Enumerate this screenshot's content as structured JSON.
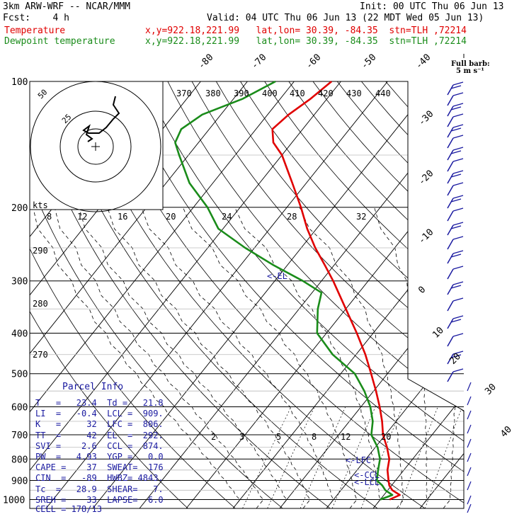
{
  "header": {
    "model": "3km ARW-WRF -- NCAR/MMM",
    "init": "Init: 00 UTC Thu 06 Jun 13",
    "fcst": "Fcst:    4 h",
    "valid": "Valid: 04 UTC Thu 06 Jun 13 (22 MDT Wed 05 Jun 13)",
    "temp_label": "Temperature",
    "temp_info": "x,y=922.18,221.99   lat,lon= 30.39, -84.35  stn=TLH ,72214",
    "dew_label": "Dewpoint temperature",
    "dew_info": "x,y=922.18,221.99   lat,lon= 30.39, -84.35  stn=TLH ,72214"
  },
  "colors": {
    "temperature": "#e00000",
    "dewpoint": "#1a8c1a",
    "parcel_text": "#1a1aa0",
    "grid": "#000000"
  },
  "barb_legend": {
    "line1": "Full barb:",
    "line2": "5 m s⁻¹"
  },
  "parcel_info": {
    "title": "Parcel Info",
    "rows": [
      [
        "T   =",
        "23.4",
        "Td =",
        "21.8"
      ],
      [
        "LI  =",
        "-0.4",
        "LCL =",
        "909."
      ],
      [
        "K   =",
        "32",
        "LFC =",
        "806."
      ],
      [
        "TT  =",
        "42",
        "EL  =",
        "292."
      ],
      [
        "SVI =",
        "2.6",
        "CCL =",
        "874."
      ],
      [
        "PW  =",
        "4.93",
        "YGP =",
        "0.0"
      ],
      [
        "CAPE =",
        "37",
        "SWEAT=",
        "176"
      ],
      [
        "CIN  =",
        "-89",
        "HWBZ=",
        "4843."
      ],
      [
        "Tc  =",
        "28.9",
        "SHEAR=",
        "7."
      ],
      [
        "SREH =",
        "33",
        "LAPSE=",
        "6.0"
      ]
    ],
    "cell": "CELL = 178/13"
  },
  "chart_data": {
    "type": "line",
    "title": "",
    "xlabel": "",
    "ylabel": "",
    "pressure_levels": [
      100,
      200,
      300,
      400,
      500,
      600,
      700,
      800,
      900,
      1000
    ],
    "ylim": [
      1050,
      100
    ],
    "isotherm_labels": [
      "-80",
      "-70",
      "-60",
      "-50",
      "-40",
      "-30",
      "-20",
      "-10",
      "0",
      "10",
      "20",
      "30",
      "40"
    ],
    "theta_labels": [
      "370",
      "380",
      "390",
      "400",
      "410",
      "420",
      "430",
      "440"
    ],
    "hodograph_speed_labels": [
      "8",
      "12",
      "16",
      "20",
      "24",
      "28",
      "32"
    ],
    "hodograph_ring_labels": [
      "50",
      "25"
    ],
    "hodograph_units": "kts",
    "dry_adiabat_labels": [
      "290",
      "280",
      "270"
    ],
    "mixing_ratio_labels": [
      "2",
      "3",
      "5",
      "8",
      "12",
      "20"
    ],
    "level_markers": [
      {
        "label": "<-EL",
        "p": 292
      },
      {
        "label": "<-LFC",
        "p": 806
      },
      {
        "label": "<-CCL",
        "p": 874
      },
      {
        "label": "<-LCL",
        "p": 909
      }
    ],
    "series": [
      {
        "name": "Temperature",
        "points": [
          [
            1000,
            22
          ],
          [
            975,
            23.4
          ],
          [
            950,
            21
          ],
          [
            925,
            19.5
          ],
          [
            900,
            18.5
          ],
          [
            850,
            16.5
          ],
          [
            800,
            15
          ],
          [
            750,
            12.5
          ],
          [
            700,
            9.5
          ],
          [
            650,
            7
          ],
          [
            600,
            4
          ],
          [
            550,
            0.5
          ],
          [
            500,
            -3.5
          ],
          [
            450,
            -8
          ],
          [
            400,
            -13.5
          ],
          [
            350,
            -20
          ],
          [
            300,
            -27.5
          ],
          [
            275,
            -32
          ],
          [
            250,
            -37
          ],
          [
            225,
            -42
          ],
          [
            200,
            -47
          ],
          [
            175,
            -53
          ],
          [
            150,
            -60
          ],
          [
            140,
            -64
          ],
          [
            130,
            -66.5
          ],
          [
            120,
            -65.5
          ],
          [
            110,
            -63.5
          ],
          [
            100,
            -62
          ]
        ]
      },
      {
        "name": "Dewpoint temperature",
        "points": [
          [
            1000,
            20
          ],
          [
            975,
            21.8
          ],
          [
            950,
            19.5
          ],
          [
            925,
            18
          ],
          [
            900,
            16
          ],
          [
            850,
            14.5
          ],
          [
            800,
            13
          ],
          [
            750,
            10.5
          ],
          [
            700,
            7
          ],
          [
            650,
            5
          ],
          [
            600,
            2
          ],
          [
            550,
            -2
          ],
          [
            500,
            -7
          ],
          [
            450,
            -15
          ],
          [
            400,
            -22
          ],
          [
            350,
            -26
          ],
          [
            320,
            -28
          ],
          [
            300,
            -34
          ],
          [
            275,
            -43
          ],
          [
            250,
            -52
          ],
          [
            225,
            -61
          ],
          [
            200,
            -67
          ],
          [
            175,
            -75
          ],
          [
            150,
            -82
          ],
          [
            140,
            -85
          ],
          [
            130,
            -86
          ],
          [
            120,
            -84
          ],
          [
            110,
            -78
          ],
          [
            100,
            -74
          ]
        ]
      }
    ]
  }
}
